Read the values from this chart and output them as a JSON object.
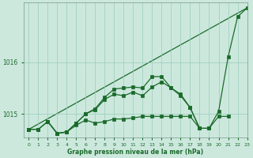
{
  "bg_color": "#cce8dd",
  "grid_color": "#99ccbb",
  "line_color": "#1a6b2a",
  "marker_color": "#1a6b2a",
  "xlabel": "Graphe pression niveau de la mer (hPa)",
  "ylabel_ticks": [
    1015,
    1016
  ],
  "xlim": [
    -0.5,
    23
  ],
  "ylim": [
    1014.55,
    1017.15
  ],
  "x": [
    0,
    1,
    2,
    3,
    4,
    5,
    6,
    7,
    8,
    9,
    10,
    11,
    12,
    13,
    14,
    15,
    16,
    17,
    18,
    19,
    20,
    21,
    22,
    23
  ],
  "series1": [
    1014.7,
    1014.7,
    1014.85,
    1014.62,
    1014.65,
    1014.78,
    1014.88,
    1014.82,
    1014.85,
    1014.9,
    1014.9,
    1014.92,
    1014.95,
    1014.95,
    1014.95,
    1014.95,
    1014.95,
    1014.95,
    1014.72,
    1014.72,
    1014.95,
    1014.95,
    null,
    null
  ],
  "series2": [
    1014.7,
    1014.7,
    1014.85,
    1014.62,
    1014.65,
    1014.82,
    1015.0,
    1015.08,
    1015.28,
    1015.38,
    1015.35,
    1015.42,
    1015.35,
    1015.52,
    1015.62,
    1015.5,
    1015.35,
    1015.12,
    1014.72,
    null,
    null,
    null,
    null,
    null
  ],
  "series3": [
    1014.7,
    null,
    1014.85,
    1014.62,
    1014.65,
    1014.82,
    1015.0,
    1015.1,
    1015.32,
    1015.48,
    1015.5,
    1015.52,
    1015.5,
    1015.72,
    1015.72,
    1015.5,
    1015.38,
    1015.12,
    1014.72,
    1014.72,
    1015.05,
    1016.1,
    1016.88,
    1017.05
  ],
  "straight_line": [
    1014.7,
    null,
    null,
    null,
    null,
    null,
    null,
    null,
    null,
    null,
    null,
    null,
    null,
    null,
    null,
    null,
    null,
    null,
    null,
    null,
    null,
    1016.1,
    1016.88,
    1017.05
  ]
}
